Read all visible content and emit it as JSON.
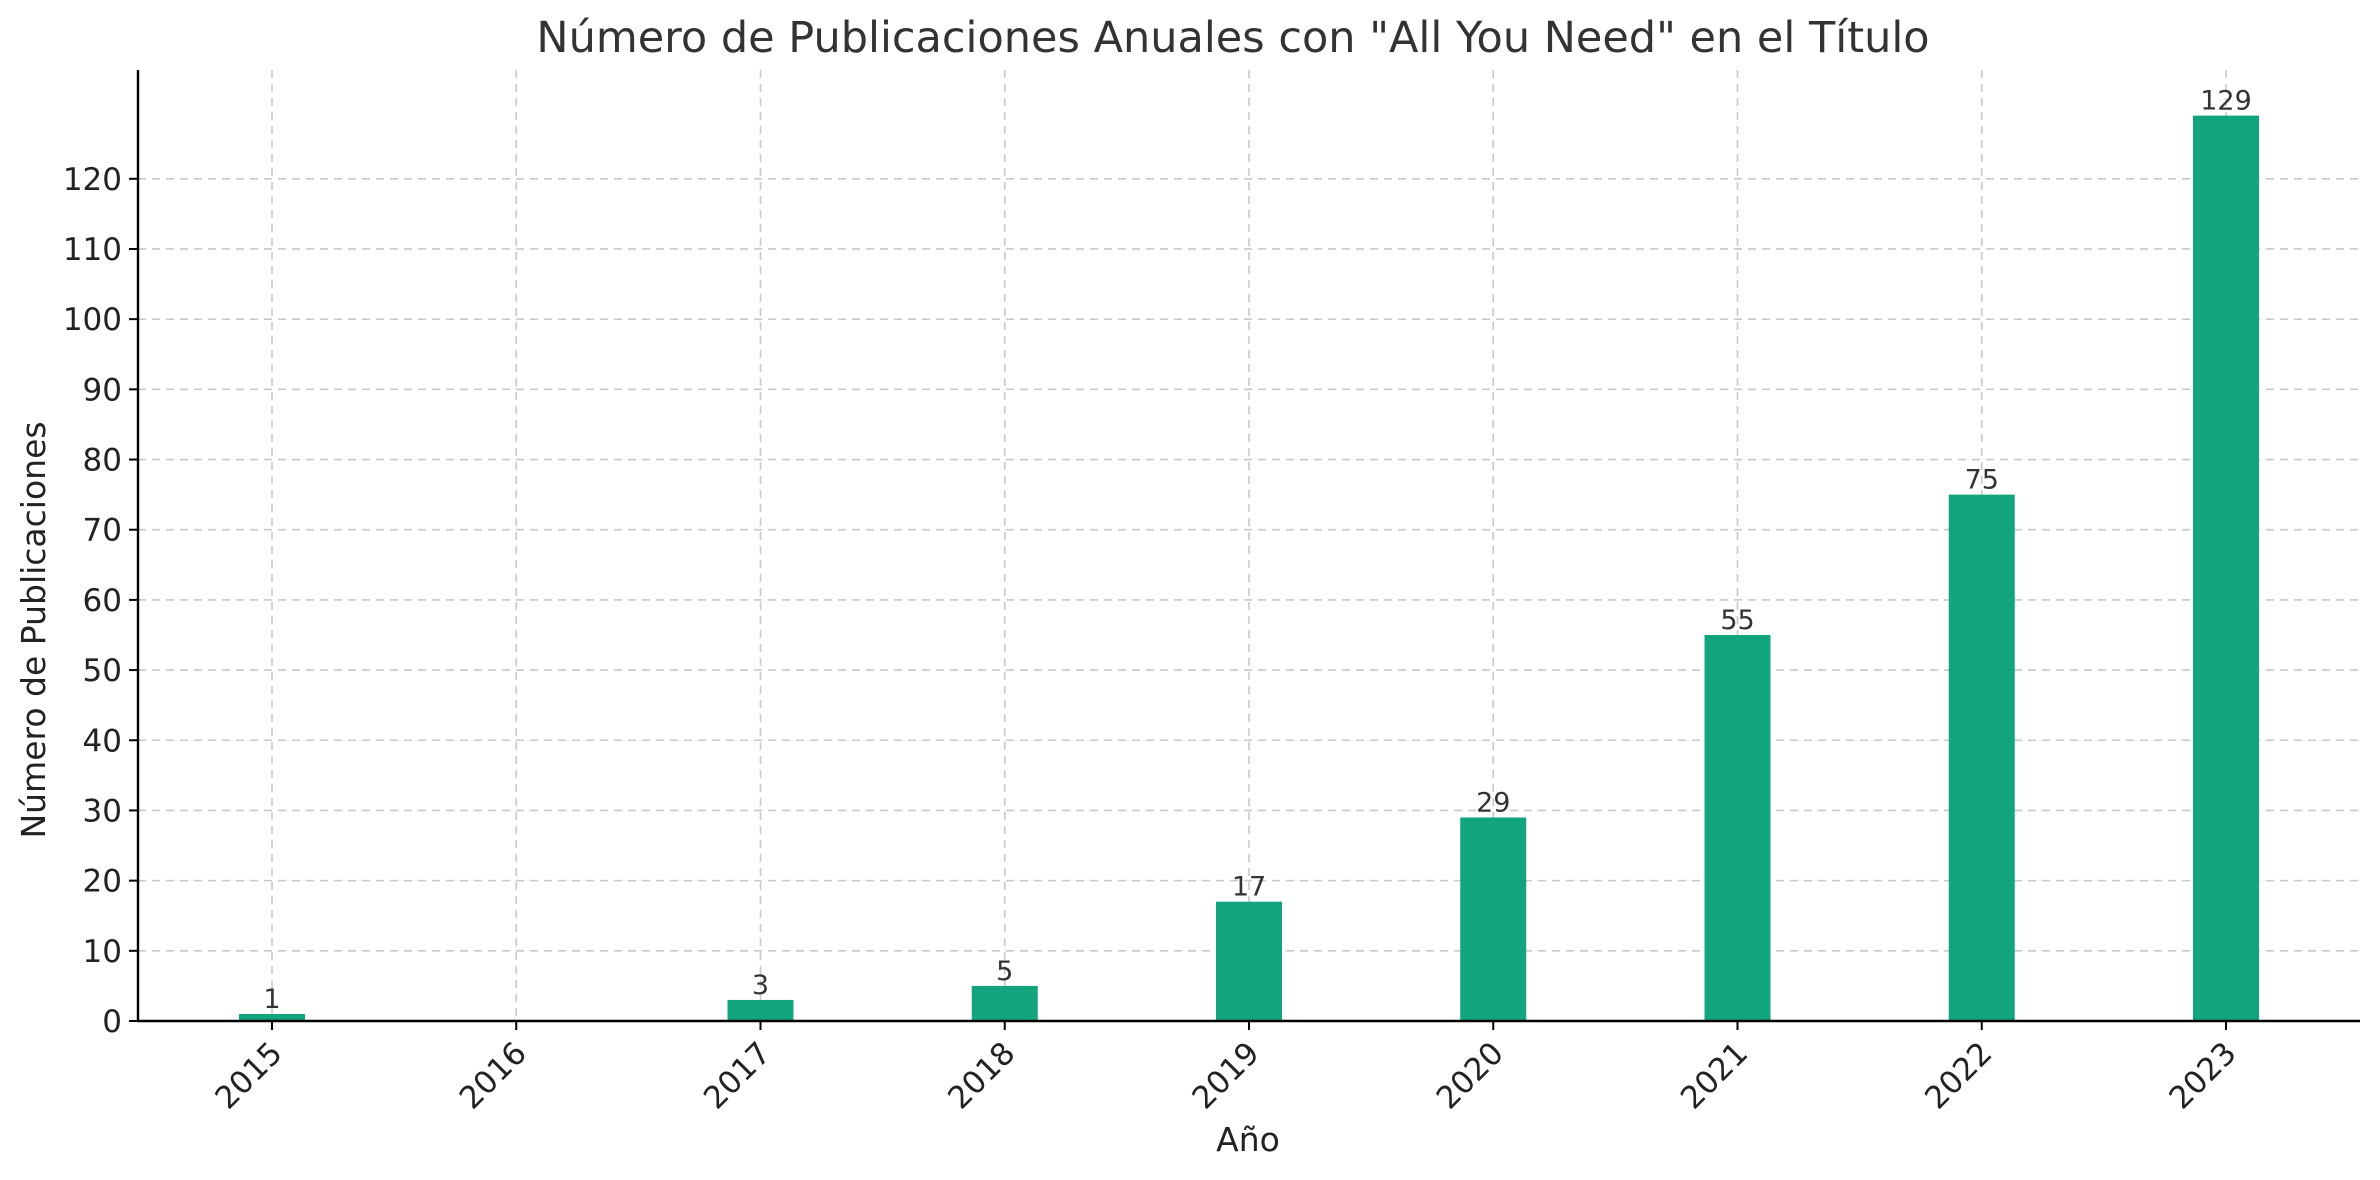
{
  "chart_data": {
    "type": "bar",
    "title": "Número de Publicaciones Anuales con \"All You Need\" en el Título",
    "xlabel": "Año",
    "ylabel": "Número de Publicaciones",
    "categories": [
      "2015",
      "2016",
      "2017",
      "2018",
      "2019",
      "2020",
      "2021",
      "2022",
      "2023"
    ],
    "values": [
      1,
      0,
      3,
      5,
      17,
      29,
      55,
      75,
      129
    ],
    "data_labels": [
      "1",
      "",
      "3",
      "5",
      "17",
      "29",
      "55",
      "75",
      "129"
    ],
    "ylim": [
      0,
      135.5
    ],
    "yticks": [
      0,
      10,
      20,
      30,
      40,
      50,
      60,
      70,
      80,
      90,
      100,
      110,
      120
    ],
    "grid": true,
    "bar_color": "#12a47c",
    "x_tick_rotation": -45
  }
}
